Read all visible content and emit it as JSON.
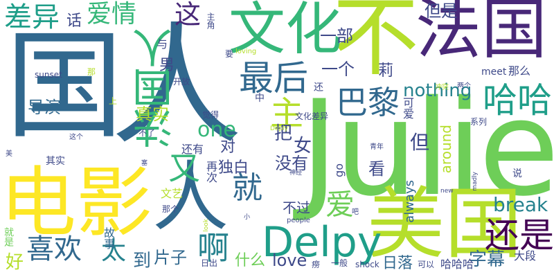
{
  "palette": {
    "yellow": "#fde725",
    "lime": "#b5de2b",
    "green_light": "#6ece58",
    "green": "#35b779",
    "teal": "#1f9e89",
    "teal_dark": "#26828e",
    "blue": "#31688e",
    "indigo": "#3e4989",
    "purple": "#482878",
    "dark_purple": "#440154"
  },
  "words": [
    {
      "id": "julie",
      "text": "Julie",
      "color": "#6ece58"
    },
    {
      "id": "guo",
      "text": "国",
      "color": "#31688e"
    },
    {
      "id": "ren-1",
      "text": "人",
      "color": "#31688e"
    },
    {
      "id": "bu",
      "text": "不",
      "color": "#b5de2b"
    },
    {
      "id": "fa-guo-top",
      "text": "法国",
      "color": "#482878"
    },
    {
      "id": "dian-ying",
      "text": "电影",
      "color": "#fde725"
    },
    {
      "id": "ren-2",
      "text": "人",
      "color": "#31688e"
    },
    {
      "id": "mei-guo",
      "text": "美国",
      "color": "#b5de2b"
    },
    {
      "id": "wen-hua",
      "text": "文化",
      "color": "#35b779"
    },
    {
      "id": "fa-guo-ren",
      "text": "法国人",
      "color": "#35b779"
    },
    {
      "id": "delpy",
      "text": "Delpy",
      "color": "#1f9e89"
    },
    {
      "id": "zui-hou",
      "text": "最后",
      "color": "#31688e"
    },
    {
      "id": "ba-li",
      "text": "巴黎",
      "color": "#31688e"
    },
    {
      "id": "ha-ha",
      "text": "哈哈",
      "color": "#1f9e89"
    },
    {
      "id": "hai-shi",
      "text": "还是",
      "color": "#440154"
    },
    {
      "id": "zhe",
      "text": "这",
      "color": "#482878"
    },
    {
      "id": "chai-yi",
      "text": "差异",
      "color": "#1f9e89"
    },
    {
      "id": "ai-qing",
      "text": "爱情",
      "color": "#35b779"
    },
    {
      "id": "zhu",
      "text": "主",
      "color": "#b5de2b"
    },
    {
      "id": "you",
      "text": "又",
      "color": "#35b779"
    },
    {
      "id": "jiu",
      "text": "就",
      "color": "#31688e"
    },
    {
      "id": "xi-huan",
      "text": "喜欢",
      "color": "#31688e"
    },
    {
      "id": "a",
      "text": "啊",
      "color": "#26828e"
    },
    {
      "id": "tai",
      "text": "太",
      "color": "#26828e"
    },
    {
      "id": "ai",
      "text": "爱",
      "color": "#6ece58"
    },
    {
      "id": "break",
      "text": "break",
      "color": "#26828e"
    },
    {
      "id": "nothing",
      "text": "nothing",
      "color": "#26828e"
    },
    {
      "id": "one",
      "text": "one",
      "color": "#35b779"
    },
    {
      "id": "love",
      "text": "love",
      "color": "#3e4989"
    },
    {
      "id": "pian-zi",
      "text": "片子",
      "color": "#31688e"
    },
    {
      "id": "zi-mu",
      "text": "字幕",
      "color": "#31688e"
    },
    {
      "id": "ri-luo",
      "text": "日落",
      "color": "#31688e"
    },
    {
      "id": "shen-me",
      "text": "什么",
      "color": "#6ece58"
    },
    {
      "id": "dao",
      "text": "到",
      "color": "#31688e"
    },
    {
      "id": "hao",
      "text": "好",
      "color": "#b5de2b"
    },
    {
      "id": "zhen-shi",
      "text": "真实",
      "color": "#b5de2b"
    },
    {
      "id": "dao-yan",
      "text": "导演",
      "color": "#31688e"
    },
    {
      "id": "yi-ge",
      "text": "一个",
      "color": "#3e4989"
    },
    {
      "id": "yi-bu",
      "text": "一部",
      "color": "#3e4989"
    },
    {
      "id": "dan-shi",
      "text": "但是",
      "color": "#3e4989"
    },
    {
      "id": "mei-you",
      "text": "没有",
      "color": "#3e4989"
    },
    {
      "id": "du-bai",
      "text": "独白",
      "color": "#3e4989"
    },
    {
      "id": "ba",
      "text": "把",
      "color": "#3e4989"
    },
    {
      "id": "dan",
      "text": "但",
      "color": "#3e4989"
    },
    {
      "id": "kan",
      "text": "看",
      "color": "#3e4989"
    },
    {
      "id": "nv",
      "text": "女",
      "color": "#3e4989"
    },
    {
      "id": "nan",
      "text": "男",
      "color": "#3e4989"
    },
    {
      "id": "dui",
      "text": "对",
      "color": "#3e4989"
    },
    {
      "id": "bu-guo",
      "text": "不过",
      "color": "#3e4989"
    },
    {
      "id": "li",
      "text": "莉",
      "color": "#3e4989"
    },
    {
      "id": "hua",
      "text": "话",
      "color": "#3e4989"
    },
    {
      "id": "na-me",
      "text": "那么",
      "color": "#3e4989"
    },
    {
      "id": "meet",
      "text": "meet",
      "color": "#3e4989"
    },
    {
      "id": "around",
      "text": "around",
      "color": "#b5de2b"
    },
    {
      "id": "always",
      "text": "always",
      "color": "#31688e"
    },
    {
      "id": "go",
      "text": "go",
      "color": "#3e4989"
    },
    {
      "id": "shock",
      "text": "shock",
      "color": "#3e4989"
    },
    {
      "id": "sunset",
      "text": "sunset",
      "color": "#3e4989"
    },
    {
      "id": "hai-you",
      "text": "还有",
      "color": "#3e4989"
    },
    {
      "id": "zai-ci",
      "text": "再次",
      "color": "#3e4989"
    },
    {
      "id": "wen-yi",
      "text": "文艺",
      "color": "#b5de2b"
    },
    {
      "id": "gu-shi",
      "text": "故事",
      "color": "#31688e"
    },
    {
      "id": "da-duan",
      "text": "大段",
      "color": "#3e4989"
    },
    {
      "id": "ha-ha-ha",
      "text": "哈哈哈",
      "color": "#3e4989"
    },
    {
      "id": "ke-yi",
      "text": "可以",
      "color": "#3e4989"
    },
    {
      "id": "yi-ban",
      "text": "一般",
      "color": "#3e4989"
    },
    {
      "id": "bang",
      "text": "痨",
      "color": "#3e4989"
    },
    {
      "id": "ri-chu",
      "text": "日出",
      "color": "#3e4989"
    },
    {
      "id": "jiu-shi",
      "text": "就是",
      "color": "#6ece58"
    },
    {
      "id": "na-ge",
      "text": "那个",
      "color": "#3e4989"
    },
    {
      "id": "qi-shi",
      "text": "其实",
      "color": "#3e4989"
    },
    {
      "id": "bu-le",
      "text": "不了",
      "color": "#3e4989"
    },
    {
      "id": "zhe-ge",
      "text": "这个",
      "color": "#3e4989"
    },
    {
      "id": "mei",
      "text": "美",
      "color": "#3e4989"
    },
    {
      "id": "na",
      "text": "那",
      "color": "#b5de2b"
    },
    {
      "id": "shang",
      "text": "上",
      "color": "#b5de2b"
    },
    {
      "id": "kai-fang",
      "text": "开放",
      "color": "#3e4989"
    },
    {
      "id": "yu",
      "text": "与",
      "color": "#3e4989"
    },
    {
      "id": "zhu-jiao",
      "text": "主角",
      "color": "#3e4989"
    },
    {
      "id": "yao",
      "text": "要",
      "color": "#3e4989"
    },
    {
      "id": "loving",
      "text": "loving",
      "color": "#b5de2b"
    },
    {
      "id": "jue-de",
      "text": "觉得",
      "color": "#3e4989"
    },
    {
      "id": "zhong",
      "text": "中",
      "color": "#3e4989"
    },
    {
      "id": "hai",
      "text": "还",
      "color": "#3e4989"
    },
    {
      "id": "ke-ai",
      "text": "可爱",
      "color": "#3e4989"
    },
    {
      "id": "chong-tu",
      "text": "冲突",
      "color": "#b5de2b"
    },
    {
      "id": "liang-ge",
      "text": "两个",
      "color": "#3e4989"
    },
    {
      "id": "xi-lie",
      "text": "系列",
      "color": "#3e4989"
    },
    {
      "id": "wen-hua-cha-yi",
      "text": "文化差异",
      "color": "#3e4989"
    },
    {
      "id": "qing-nian",
      "text": "青年",
      "color": "#3e4989"
    },
    {
      "id": "deply",
      "text": "Deply",
      "color": "#b5de2b"
    },
    {
      "id": "shen-jing",
      "text": "神经",
      "color": "#3e4989"
    },
    {
      "id": "ba-2",
      "text": "吧",
      "color": "#3e4989"
    },
    {
      "id": "xiao",
      "text": "小",
      "color": "#3e4989"
    },
    {
      "id": "look",
      "text": "look",
      "color": "#b5de2b"
    },
    {
      "id": "people",
      "text": "people",
      "color": "#3e4989"
    },
    {
      "id": "madly",
      "text": "madly",
      "color": "#3e4989"
    },
    {
      "id": "new",
      "text": "new",
      "color": "#3e4989"
    },
    {
      "id": "shuo",
      "text": "说",
      "color": "#3e4989"
    },
    {
      "id": "sai",
      "text": "塞",
      "color": "#3e4989"
    }
  ]
}
